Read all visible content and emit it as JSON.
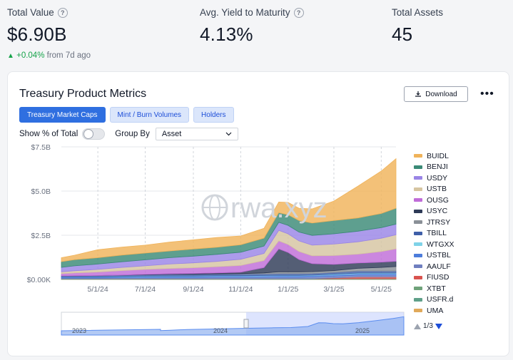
{
  "stats": {
    "total_value": {
      "label": "Total Value",
      "value": "$6.90B",
      "delta": "+0.04%",
      "since": "from 7d ago"
    },
    "avg_yield": {
      "label": "Avg. Yield to Maturity",
      "value": "4.13%"
    },
    "total_assets": {
      "label": "Total Assets",
      "value": "45"
    }
  },
  "card": {
    "title": "Treasury Product Metrics",
    "download_label": "Download",
    "more_icon": "more-horizontal-icon",
    "tabs": [
      {
        "label": "Treasury Market Caps",
        "active": true
      },
      {
        "label": "Mint / Burn Volumes",
        "active": false
      },
      {
        "label": "Holders",
        "active": false
      }
    ],
    "show_pct_label": "Show % of Total",
    "show_pct_on": false,
    "group_by_label": "Group By",
    "group_by_value": "Asset",
    "watermark": "rwa.xyz",
    "pager": "1/3"
  },
  "colors": {
    "accent": "#2f6fe0",
    "up": "#16a34a"
  },
  "chart_data": {
    "type": "area",
    "stacked": true,
    "x": [
      "2024-03-15",
      "2024-04-01",
      "2024-05-01",
      "2024-06-01",
      "2024-07-01",
      "2024-08-01",
      "2024-09-01",
      "2024-10-01",
      "2024-11-01",
      "2024-12-01",
      "2024-12-20",
      "2025-01-01",
      "2025-01-15",
      "2025-02-01",
      "2025-03-01",
      "2025-04-01",
      "2025-05-01",
      "2025-05-20"
    ],
    "xticks": [
      "5/1/24",
      "7/1/24",
      "9/1/24",
      "11/1/24",
      "1/1/25",
      "3/1/25",
      "5/1/25"
    ],
    "yticks": [
      "$0.00K",
      "$2.5B",
      "$5.0B",
      "$7.5B"
    ],
    "ylim": [
      0,
      7.5
    ],
    "yunit": "B",
    "grid": true,
    "legend_position": "right",
    "series": [
      {
        "name": "UMA",
        "color": "#e0a95a",
        "values": [
          0.01,
          0.01,
          0.01,
          0.01,
          0.01,
          0.01,
          0.01,
          0.01,
          0.01,
          0.01,
          0.01,
          0.01,
          0.01,
          0.01,
          0.01,
          0.01,
          0.01,
          0.01
        ]
      },
      {
        "name": "USFR.d",
        "color": "#5fa089",
        "values": [
          0.02,
          0.02,
          0.02,
          0.02,
          0.02,
          0.02,
          0.02,
          0.02,
          0.02,
          0.02,
          0.02,
          0.02,
          0.02,
          0.02,
          0.02,
          0.02,
          0.02,
          0.02
        ]
      },
      {
        "name": "XTBT",
        "color": "#6fa27a",
        "values": [
          0.01,
          0.01,
          0.01,
          0.01,
          0.01,
          0.01,
          0.01,
          0.01,
          0.01,
          0.01,
          0.01,
          0.01,
          0.01,
          0.01,
          0.01,
          0.01,
          0.01,
          0.01
        ]
      },
      {
        "name": "FIUSD",
        "color": "#d9534f",
        "values": [
          0.0,
          0.0,
          0.0,
          0.0,
          0.0,
          0.0,
          0.0,
          0.0,
          0.0,
          0.0,
          0.0,
          0.0,
          0.0,
          0.0,
          0.05,
          0.1,
          0.1,
          0.1
        ]
      },
      {
        "name": "AAULF",
        "color": "#6f7fbf",
        "values": [
          0.05,
          0.05,
          0.05,
          0.06,
          0.06,
          0.07,
          0.07,
          0.08,
          0.08,
          0.08,
          0.09,
          0.09,
          0.09,
          0.1,
          0.1,
          0.1,
          0.1,
          0.1
        ]
      },
      {
        "name": "USTBL",
        "color": "#4d7ddb",
        "values": [
          0.05,
          0.05,
          0.05,
          0.05,
          0.06,
          0.06,
          0.06,
          0.07,
          0.07,
          0.08,
          0.08,
          0.08,
          0.08,
          0.08,
          0.08,
          0.09,
          0.09,
          0.09
        ]
      },
      {
        "name": "WTGXX",
        "color": "#7fd3e8",
        "values": [
          0.01,
          0.01,
          0.01,
          0.02,
          0.02,
          0.02,
          0.02,
          0.02,
          0.02,
          0.02,
          0.02,
          0.02,
          0.02,
          0.02,
          0.03,
          0.03,
          0.03,
          0.03
        ]
      },
      {
        "name": "TBILL",
        "color": "#3f5fa8",
        "values": [
          0.05,
          0.06,
          0.07,
          0.08,
          0.09,
          0.1,
          0.1,
          0.1,
          0.1,
          0.1,
          0.1,
          0.1,
          0.1,
          0.1,
          0.1,
          0.12,
          0.12,
          0.12
        ]
      },
      {
        "name": "JTRSY",
        "color": "#8a9097",
        "values": [
          0.0,
          0.0,
          0.0,
          0.0,
          0.0,
          0.0,
          0.0,
          0.0,
          0.02,
          0.05,
          0.1,
          0.1,
          0.1,
          0.1,
          0.1,
          0.15,
          0.2,
          0.25
        ]
      },
      {
        "name": "USYC",
        "color": "#2e3a57",
        "values": [
          0.0,
          0.0,
          0.0,
          0.0,
          0.02,
          0.03,
          0.05,
          0.06,
          0.08,
          0.3,
          1.3,
          1.1,
          0.7,
          0.45,
          0.35,
          0.3,
          0.3,
          0.3
        ]
      },
      {
        "name": "OUSG",
        "color": "#c06cd8",
        "values": [
          0.13,
          0.16,
          0.2,
          0.25,
          0.28,
          0.3,
          0.32,
          0.35,
          0.38,
          0.4,
          0.45,
          0.45,
          0.45,
          0.45,
          0.5,
          0.5,
          0.6,
          0.7
        ]
      },
      {
        "name": "USTB",
        "color": "#d6c5a1",
        "values": [
          0.1,
          0.12,
          0.15,
          0.18,
          0.2,
          0.25,
          0.28,
          0.3,
          0.35,
          0.4,
          0.6,
          0.6,
          0.6,
          0.6,
          0.65,
          0.7,
          0.75,
          0.8
        ]
      },
      {
        "name": "USDY",
        "color": "#9a85e6",
        "values": [
          0.25,
          0.28,
          0.3,
          0.32,
          0.34,
          0.36,
          0.38,
          0.4,
          0.4,
          0.42,
          0.45,
          0.48,
          0.5,
          0.55,
          0.58,
          0.6,
          0.6,
          0.6
        ]
      },
      {
        "name": "BENJI",
        "color": "#3a8a76",
        "values": [
          0.33,
          0.35,
          0.36,
          0.38,
          0.38,
          0.38,
          0.4,
          0.4,
          0.42,
          0.45,
          0.55,
          0.6,
          0.65,
          0.7,
          0.75,
          0.75,
          0.8,
          0.9
        ]
      },
      {
        "name": "BUIDL",
        "color": "#f0b35a",
        "values": [
          0.22,
          0.25,
          0.45,
          0.45,
          0.45,
          0.5,
          0.52,
          0.55,
          0.5,
          0.55,
          0.6,
          0.7,
          0.7,
          0.8,
          1.1,
          1.8,
          2.4,
          2.8
        ]
      }
    ],
    "legend": [
      "BUIDL",
      "BENJI",
      "USDY",
      "USTB",
      "OUSG",
      "USYC",
      "JTRSY",
      "TBILL",
      "WTGXX",
      "USTBL",
      "AAULF",
      "FIUSD",
      "XTBT",
      "USFR.d",
      "UMA"
    ],
    "navigator": {
      "years": [
        "2023",
        "2024",
        "2025"
      ]
    }
  }
}
